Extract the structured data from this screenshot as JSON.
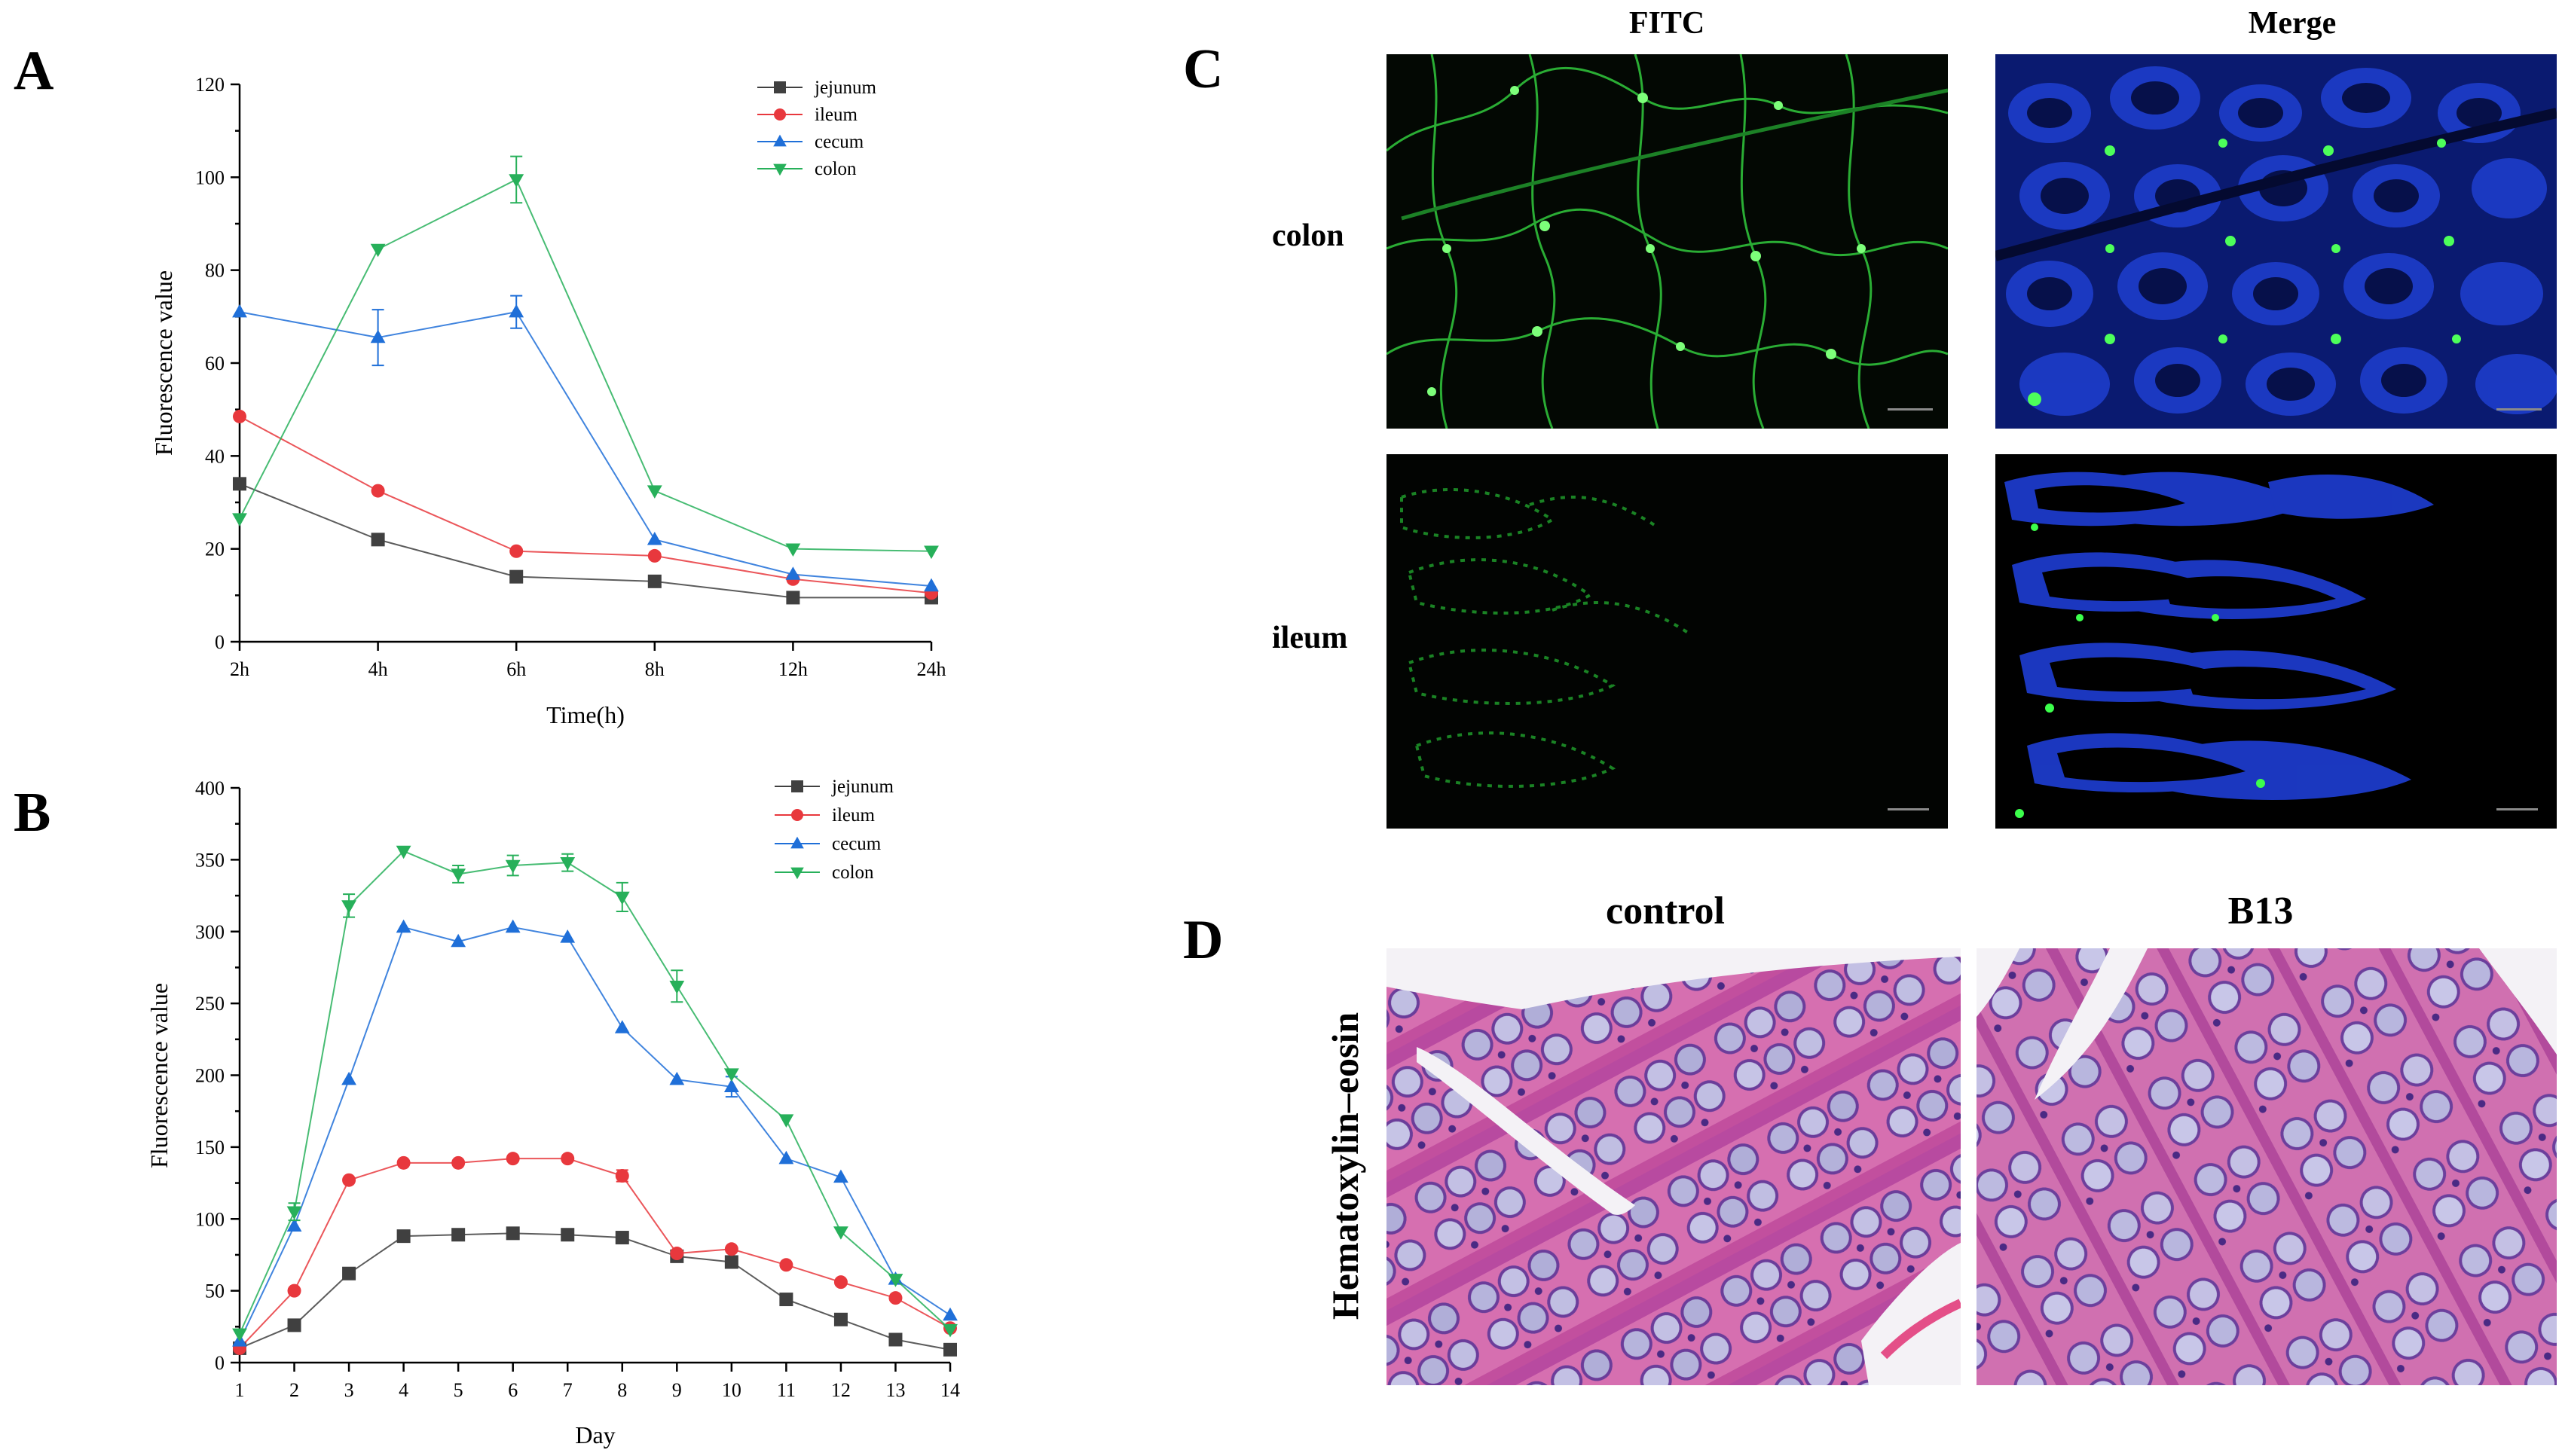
{
  "panels": {
    "A": "A",
    "B": "B",
    "C": "C",
    "D": "D"
  },
  "series_colors": {
    "jejunum": "#404040",
    "ileum": "#e8383d",
    "cecum": "#1f6fd8",
    "colon": "#27b05a"
  },
  "chart_data": [
    {
      "type": "line",
      "panel": "A",
      "xlabel": "Time(h)",
      "ylabel": "Fluorescence value",
      "categories": [
        "2h",
        "4h",
        "6h",
        "8h",
        "12h",
        "24h"
      ],
      "ylim": [
        0,
        120
      ],
      "yticks": [
        "0",
        "20",
        "40",
        "60",
        "80",
        "100",
        "120"
      ],
      "series": [
        {
          "name": "jejunum",
          "marker": "square",
          "values": [
            34,
            22,
            14,
            13,
            9.5,
            9.5
          ],
          "errors": [
            0,
            0,
            0,
            0,
            0,
            0
          ]
        },
        {
          "name": "ileum",
          "marker": "circle",
          "values": [
            48.5,
            32.5,
            19.5,
            18.5,
            13.5,
            10.5
          ],
          "errors": [
            0,
            0,
            0,
            0,
            0,
            0
          ]
        },
        {
          "name": "cecum",
          "marker": "triangle-up",
          "values": [
            71,
            65.5,
            71,
            22,
            14.5,
            12
          ],
          "errors": [
            0,
            6,
            3.5,
            0,
            0,
            0
          ]
        },
        {
          "name": "colon",
          "marker": "triangle-down",
          "values": [
            26.5,
            84.5,
            99.5,
            32.5,
            20,
            19.5
          ],
          "errors": [
            0,
            0,
            5,
            0,
            0,
            0
          ]
        }
      ]
    },
    {
      "type": "line",
      "panel": "B",
      "xlabel": "Day",
      "ylabel": "Fluorescence value",
      "categories": [
        "1",
        "2",
        "3",
        "4",
        "5",
        "6",
        "7",
        "8",
        "9",
        "10",
        "11",
        "12",
        "13",
        "14"
      ],
      "ylim": [
        0,
        400
      ],
      "yticks": [
        "0",
        "50",
        "100",
        "150",
        "200",
        "250",
        "300",
        "350",
        "400"
      ],
      "series": [
        {
          "name": "jejunum",
          "marker": "square",
          "values": [
            10,
            26,
            62,
            88,
            89,
            90,
            89,
            87,
            74,
            70,
            44,
            30,
            16,
            9
          ],
          "errors": [
            0,
            0,
            0,
            0,
            0,
            0,
            0,
            0,
            0,
            0,
            0,
            0,
            0,
            0
          ]
        },
        {
          "name": "ileum",
          "marker": "circle",
          "values": [
            10,
            50,
            127,
            139,
            139,
            142,
            142,
            130,
            76,
            79,
            68,
            56,
            45,
            24
          ],
          "errors": [
            0,
            0,
            0,
            0,
            0,
            0,
            0,
            4,
            0,
            0,
            0,
            0,
            0,
            0
          ]
        },
        {
          "name": "cecum",
          "marker": "triangle-up",
          "values": [
            15,
            95,
            197,
            303,
            293,
            303,
            296,
            233,
            197,
            192,
            142,
            129,
            58,
            33
          ],
          "errors": [
            0,
            0,
            0,
            0,
            0,
            0,
            0,
            0,
            0,
            7,
            0,
            0,
            0,
            0
          ]
        },
        {
          "name": "colon",
          "marker": "triangle-down",
          "values": [
            20,
            105,
            318,
            356,
            340,
            346,
            348,
            324,
            262,
            201,
            169,
            91,
            58,
            23
          ],
          "errors": [
            0,
            6,
            8,
            0,
            6,
            7,
            6,
            10,
            11,
            0,
            0,
            0,
            0,
            0
          ]
        }
      ]
    }
  ],
  "panel_c": {
    "columns": [
      "FITC",
      "Merge"
    ],
    "rows": [
      "colon",
      "ileum"
    ]
  },
  "panel_d": {
    "columns": [
      "control",
      "B13"
    ],
    "row_label": "Hematoxylin–eosin"
  }
}
